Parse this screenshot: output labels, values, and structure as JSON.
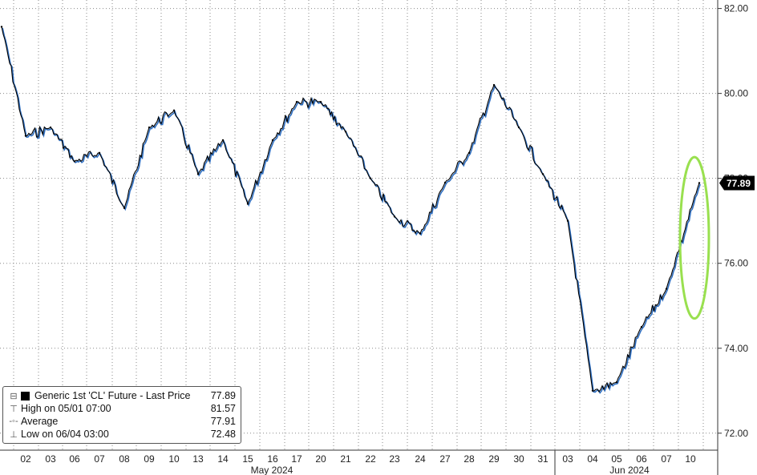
{
  "chart_data": {
    "type": "line",
    "title": "",
    "xlabel": "",
    "ylabel": "",
    "ylim": [
      71.6,
      82.2
    ],
    "y_ticks": [
      "82.00",
      "80.00",
      "78.00",
      "76.00",
      "74.00",
      "72.00"
    ],
    "y_tick_values": [
      82,
      80,
      78,
      76,
      74,
      72
    ],
    "grid": true,
    "x_day_labels": [
      "02",
      "03",
      "06",
      "07",
      "08",
      "09",
      "10",
      "13",
      "14",
      "15",
      "16",
      "17",
      "20",
      "21",
      "22",
      "23",
      "24",
      "27",
      "28",
      "29",
      "30",
      "31",
      "03",
      "04",
      "05",
      "06",
      "07",
      "10"
    ],
    "x_month_labels": [
      "May 2024",
      "Jun 2024"
    ],
    "last_price_label": "77.89",
    "series": [
      {
        "name": "Generic 1st 'CL' Future - Last Price",
        "color": "#000000",
        "x": [
          "05/01",
          "05/02",
          "05/03",
          "05/06",
          "05/07",
          "05/08",
          "05/09",
          "05/10",
          "05/13",
          "05/14",
          "05/15",
          "05/16",
          "05/17",
          "05/20",
          "05/21",
          "05/22",
          "05/23",
          "05/24",
          "05/27",
          "05/28",
          "05/29",
          "05/30",
          "05/31",
          "06/03",
          "06/04",
          "06/05",
          "06/06",
          "06/07",
          "06/10"
        ],
        "values": [
          81.57,
          79.0,
          79.2,
          78.4,
          78.6,
          77.3,
          79.2,
          79.6,
          78.1,
          78.9,
          77.4,
          78.9,
          79.8,
          79.8,
          79.1,
          78.0,
          77.1,
          76.7,
          77.9,
          78.6,
          80.2,
          79.2,
          78.1,
          77.0,
          73.0,
          73.2,
          74.5,
          75.4,
          77.89
        ]
      }
    ],
    "legend": {
      "placement": "bottom-left",
      "rows": [
        {
          "label": "Generic 1st 'CL' Future - Last Price",
          "value": "77.89"
        },
        {
          "label": "High on 05/01 07:00",
          "value": "81.57"
        },
        {
          "label": "Average",
          "value": "77.91"
        },
        {
          "label": "Low on 06/04 03:00",
          "value": "72.48"
        }
      ]
    },
    "annotations": [
      {
        "type": "highlight-ellipse",
        "color": "#99e04f",
        "x_from": "06/07",
        "x_to": "06/10",
        "y_from": 74.7,
        "y_to": 78.5
      }
    ],
    "colors": {
      "line_dark": "#000000",
      "line_blue": "#2f6fc1",
      "highlight": "#99e04f",
      "grid": "#888888"
    }
  }
}
